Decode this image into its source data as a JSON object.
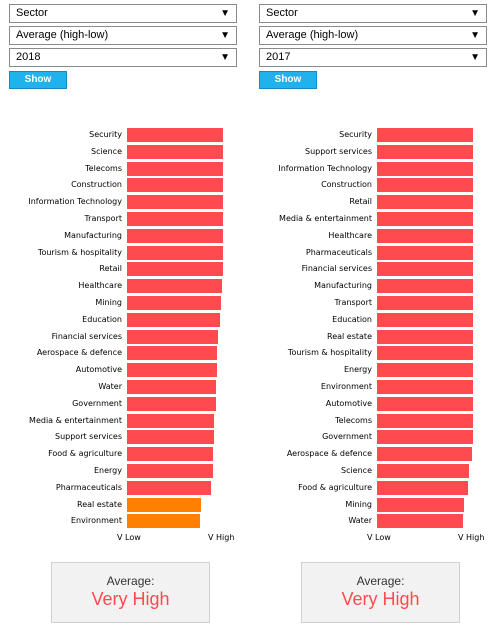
{
  "colors": {
    "very_high": "#ff4a4f",
    "high": "#ff7f00",
    "show_button": "#1fb2ec",
    "value_text": "#ff4a4f"
  },
  "panels": [
    {
      "dropdowns": {
        "category": "Sector",
        "measure": "Average (high-low)",
        "year": "2018"
      },
      "show_label": "Show",
      "axis": {
        "low": "V Low",
        "high": "V High"
      },
      "average": {
        "title": "Average:",
        "value": "Very High"
      },
      "chart_data": {
        "type": "bar",
        "orientation": "horizontal",
        "xlabel": "",
        "ylabel": "",
        "x_tick_labels": [
          "V Low",
          "V High"
        ],
        "xlim": [
          0,
          1
        ],
        "categories": [
          "Security",
          "Science",
          "Telecoms",
          "Construction",
          "Information Technology",
          "Transport",
          "Manufacturing",
          "Tourism & hospitality",
          "Retail",
          "Healthcare",
          "Mining",
          "Education",
          "Financial services",
          "Aerospace & defence",
          "Automotive",
          "Water",
          "Government",
          "Media & entertainment",
          "Support services",
          "Food & agriculture",
          "Energy",
          "Pharmaceuticals",
          "Real estate",
          "Environment"
        ],
        "values": [
          0.99,
          0.99,
          0.99,
          0.99,
          0.99,
          0.99,
          0.99,
          0.99,
          0.99,
          0.98,
          0.97,
          0.96,
          0.94,
          0.93,
          0.93,
          0.92,
          0.92,
          0.9,
          0.9,
          0.89,
          0.89,
          0.87,
          0.76,
          0.75
        ],
        "levels": [
          "Very High",
          "Very High",
          "Very High",
          "Very High",
          "Very High",
          "Very High",
          "Very High",
          "Very High",
          "Very High",
          "Very High",
          "Very High",
          "Very High",
          "Very High",
          "Very High",
          "Very High",
          "Very High",
          "Very High",
          "Very High",
          "Very High",
          "Very High",
          "Very High",
          "Very High",
          "High",
          "High"
        ]
      }
    },
    {
      "dropdowns": {
        "category": "Sector",
        "measure": "Average (high-low)",
        "year": "2017"
      },
      "show_label": "Show",
      "axis": {
        "low": "V Low",
        "high": "V High"
      },
      "average": {
        "title": "Average:",
        "value": "Very High"
      },
      "chart_data": {
        "type": "bar",
        "orientation": "horizontal",
        "xlabel": "",
        "ylabel": "",
        "x_tick_labels": [
          "V Low",
          "V High"
        ],
        "xlim": [
          0,
          1
        ],
        "categories": [
          "Security",
          "Support services",
          "Information Technology",
          "Construction",
          "Retail",
          "Media & entertainment",
          "Healthcare",
          "Pharmaceuticals",
          "Financial services",
          "Manufacturing",
          "Transport",
          "Education",
          "Real estate",
          "Tourism & hospitality",
          "Energy",
          "Environment",
          "Automotive",
          "Telecoms",
          "Government",
          "Aerospace & defence",
          "Science",
          "Food & agriculture",
          "Mining",
          "Water"
        ],
        "values": [
          0.99,
          0.99,
          0.99,
          0.99,
          0.99,
          0.99,
          0.99,
          0.99,
          0.99,
          0.99,
          0.99,
          0.99,
          0.99,
          0.99,
          0.99,
          0.99,
          0.99,
          0.99,
          0.99,
          0.98,
          0.95,
          0.94,
          0.9,
          0.89
        ],
        "levels": [
          "Very High",
          "Very High",
          "Very High",
          "Very High",
          "Very High",
          "Very High",
          "Very High",
          "Very High",
          "Very High",
          "Very High",
          "Very High",
          "Very High",
          "Very High",
          "Very High",
          "Very High",
          "Very High",
          "Very High",
          "Very High",
          "Very High",
          "Very High",
          "Very High",
          "Very High",
          "Very High",
          "Very High"
        ]
      }
    }
  ]
}
